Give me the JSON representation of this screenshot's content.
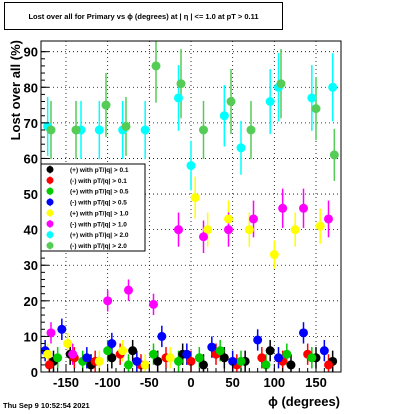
{
  "title": "Lost over all for Primary vs ϕ (degrees) at | η | <= 1.0 at pT > 0.11",
  "footer": "Thu Sep  9 10:52:54 2021",
  "chart_data": {
    "type": "scatter",
    "xlabel": "ϕ (degrees)",
    "ylabel": "Lost over all (%)",
    "xlim": [
      -180,
      180
    ],
    "ylim": [
      0,
      93
    ],
    "xticks": [
      -150,
      -100,
      -50,
      0,
      50,
      100,
      150
    ],
    "yticks": [
      0,
      10,
      20,
      30,
      40,
      50,
      60,
      70,
      80,
      90
    ],
    "grid": true,
    "legend_position": "middle-left",
    "series": [
      {
        "name": "(+) with pT/|q| > 0.1",
        "color": "#000000",
        "x": [
          -165,
          -145,
          -120,
          -95,
          -70,
          -40,
          -10,
          15,
          40,
          65,
          95,
          120,
          150,
          170
        ],
        "y": [
          3,
          5,
          2,
          4,
          6,
          3,
          5,
          2,
          4,
          3,
          6,
          2,
          4,
          3
        ]
      },
      {
        "name": "(-) with pT/|q| > 0.1",
        "color": "#ff0000",
        "x": [
          -170,
          -140,
          -115,
          -85,
          -60,
          -30,
          0,
          30,
          55,
          85,
          110,
          140,
          165
        ],
        "y": [
          2,
          4,
          3,
          5,
          2,
          4,
          3,
          5,
          2,
          4,
          3,
          5,
          2
        ]
      },
      {
        "name": "(+) with pT/|q| > 0.5",
        "color": "#00cc00",
        "x": [
          -160,
          -130,
          -100,
          -75,
          -45,
          -15,
          10,
          35,
          60,
          90,
          115,
          145
        ],
        "y": [
          4,
          3,
          6,
          2,
          5,
          3,
          4,
          6,
          3,
          2,
          5,
          4
        ]
      },
      {
        "name": "(-) with pT/|q| > 0.5",
        "color": "#0000ff",
        "x": [
          -175,
          -155,
          -125,
          -95,
          -65,
          -35,
          -5,
          25,
          50,
          80,
          105,
          135,
          160
        ],
        "y": [
          6,
          12,
          4,
          8,
          3,
          10,
          5,
          7,
          3,
          9,
          4,
          11,
          6
        ]
      },
      {
        "name": "(+) with pT/|q| > 1.0",
        "color": "#ffff00",
        "x": [
          -172,
          -148,
          -110,
          -82,
          -55,
          -25,
          5,
          20,
          45,
          70,
          100,
          125,
          155
        ],
        "y": [
          5,
          8,
          3,
          6,
          2,
          4,
          49,
          40,
          43,
          40,
          33,
          40,
          41
        ]
      },
      {
        "name": "(-) with pT/|q| > 1.0",
        "color": "#ff00ff",
        "x": [
          -168,
          -142,
          -100,
          -75,
          -45,
          -15,
          15,
          45,
          75,
          110,
          135,
          165
        ],
        "y": [
          11,
          5,
          20,
          23,
          19,
          40,
          38,
          40,
          43,
          46,
          46,
          43
        ]
      },
      {
        "name": "(+) with pT/|q| > 2.0",
        "color": "#00ffff",
        "x": [
          -172,
          -132,
          -110,
          -82,
          -55,
          -15,
          0,
          40,
          60,
          95,
          105,
          145,
          170
        ],
        "y": [
          69,
          68,
          68,
          68,
          68,
          77,
          58,
          72,
          63,
          76,
          80,
          77,
          80
        ]
      },
      {
        "name": "(-) with pT/|q| > 2.0",
        "color": "#55cc55",
        "x": [
          -168,
          -138,
          -102,
          -78,
          -42,
          -12,
          15,
          48,
          72,
          108,
          150,
          172
        ],
        "y": [
          68,
          68,
          75,
          69,
          86,
          81,
          68,
          76,
          68,
          81,
          74,
          61
        ]
      }
    ]
  }
}
